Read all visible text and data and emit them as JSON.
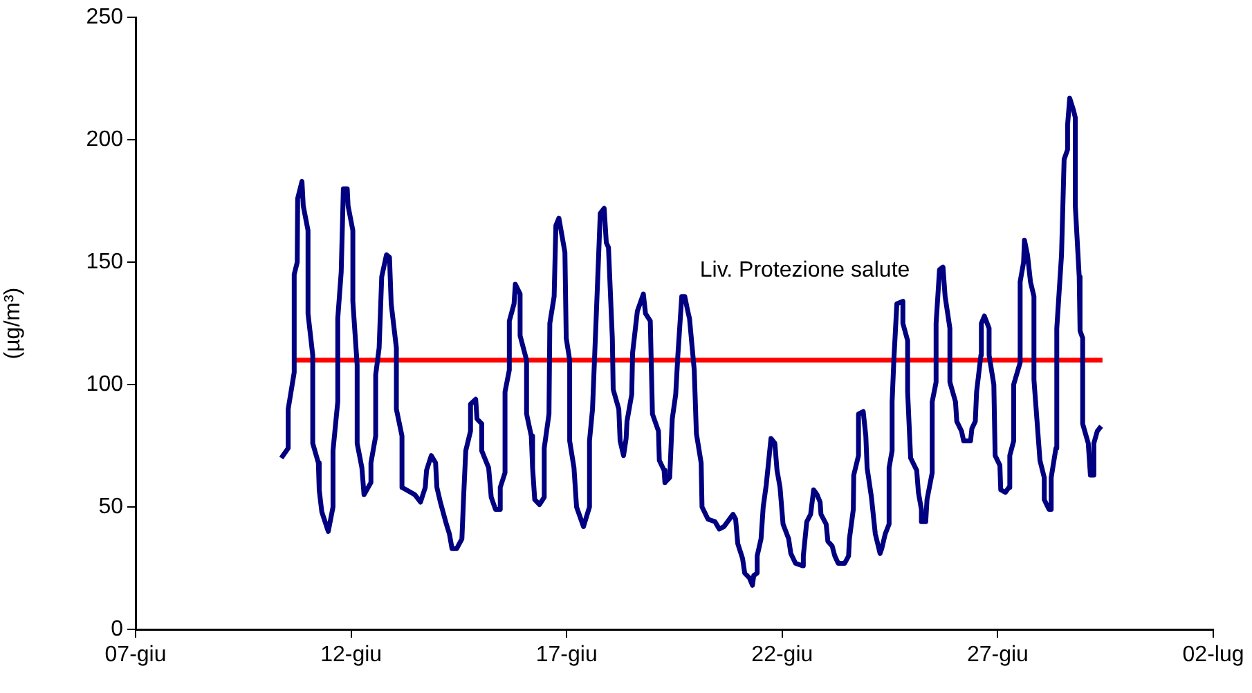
{
  "chart_data": {
    "type": "line",
    "ylabel": "(µg/m³)",
    "xlim": [
      "--06-07",
      "--07-02"
    ],
    "ylim": [
      0,
      250
    ],
    "xticks": [
      {
        "value": "--06-07",
        "label": "07-giu"
      },
      {
        "value": "--06-12",
        "label": "12-giu"
      },
      {
        "value": "--06-17",
        "label": "17-giu"
      },
      {
        "value": "--06-22",
        "label": "22-giu"
      },
      {
        "value": "--06-27",
        "label": "27-giu"
      },
      {
        "value": "--07-02",
        "label": "02-lug"
      }
    ],
    "yticks": [
      0,
      50,
      100,
      150,
      200,
      250
    ],
    "grid": false,
    "legend": false,
    "marker": "none",
    "line_style": "solid",
    "annotations": [
      "Liv. Protezione salute"
    ],
    "series": [
      {
        "color": "#000080",
        "x": [
          "--06-10T09:07",
          "--06-10T12:58",
          "--06-10T12:58",
          "--06-10T16:19",
          "--06-10T16:19",
          "--06-10T18:00",
          "--06-10T18:14",
          "--06-10T20:38",
          "--06-10T21:22",
          "--06-11T00:00",
          "--06-11T00:00",
          "--06-11T02:38",
          "--06-11T02:38",
          "--06-11T05:46",
          "--06-11T06:14",
          "--06-11T07:41",
          "--06-11T11:17",
          "--06-11T13:55",
          "--06-11T13:55",
          "--06-11T16:34",
          "--06-11T16:34",
          "--06-11T18:29",
          "--06-11T19:41",
          "--06-11T21:50",
          "--06-11T22:19",
          "--06-12T00:58",
          "--06-12T00:58",
          "--06-12T03:22",
          "--06-12T03:22",
          "--06-12T06:00",
          "--06-12T07:12",
          "--06-12T11:02",
          "--06-12T11:02",
          "--06-12T13:41",
          "--06-12T13:41",
          "--06-12T15:36",
          "--06-12T17:02",
          "--06-12T19:41",
          "--06-12T21:22",
          "--06-12T22:19",
          "--06-13T01:12",
          "--06-13T01:12",
          "--06-13T04:19",
          "--06-13T04:19",
          "--06-13T09:07",
          "--06-13T11:31",
          "--06-13T14:38",
          "--06-13T17:17",
          "--06-13T18:00",
          "--06-13T20:38",
          "--06-13T23:02",
          "--06-13T23:46",
          "--06-14T01:41",
          "--06-14T05:02",
          "--06-14T06:43",
          "--06-14T08:10",
          "--06-14T10:48",
          "--06-14T13:41",
          "--06-14T14:38",
          "--06-14T15:50",
          "--06-14T18:29",
          "--06-14T18:29",
          "--06-14T21:22",
          "--06-14T22:05",
          "--06-15T00:43",
          "--06-15T00:43",
          "--06-15T04:34",
          "--06-15T06:00",
          "--06-15T08:24",
          "--06-15T11:02",
          "--06-15T11:02",
          "--06-15T13:41",
          "--06-15T13:41",
          "--06-15T16:05",
          "--06-15T16:05",
          "--06-15T18:43",
          "--06-15T19:26",
          "--06-15T22:05",
          "--06-15T22:05",
          "--06-16T01:41",
          "--06-16T01:41",
          "--06-16T04:19",
          "--06-16T05:02",
          "--06-16T06:14",
          "--06-16T08:53",
          "--06-16T11:31",
          "--06-16T11:31",
          "--06-16T14:10",
          "--06-16T14:38",
          "--06-16T17:02",
          "--06-16T18:00",
          "--06-16T19:41",
          "--06-16T23:02",
          "--06-16T23:46",
          "--06-17T01:41",
          "--06-17T01:41",
          "--06-17T04:05",
          "--06-17T05:31",
          "--06-17T09:22",
          "--06-17T12:43",
          "--06-17T12:43",
          "--06-17T14:24",
          "--06-17T16:19",
          "--06-17T18:43",
          "--06-17T20:53",
          "--06-17T22:05",
          "--06-17T23:17",
          "--06-18T01:26",
          "--06-18T01:55",
          "--06-18T05:02",
          "--06-18T05:46",
          "--06-18T07:41",
          "--06-18T09:07",
          "--06-18T09:36",
          "--06-18T12:14",
          "--06-18T12:43",
          "--06-18T15:22",
          "--06-18T18:43",
          "--06-18T19:55",
          "--06-18T22:34",
          "--06-18T23:46",
          "--06-19T03:07",
          "--06-19T03:36",
          "--06-19T06:14",
          "--06-19T06:43",
          "--06-19T09:22",
          "--06-19T10:48",
          "--06-19T12:43",
          "--06-19T13:55",
          "--06-19T16:05",
          "--06-19T17:46",
          "--06-19T19:26",
          "--06-19T20:24",
          "--06-19T23:02",
          "--06-20T00:14",
          "--06-20T02:53",
          "--06-20T03:22",
          "--06-20T06:43",
          "--06-20T10:34",
          "--06-20T12:58",
          "--06-20T15:36",
          "--06-20T20:38",
          "--06-20T22:05",
          "--06-20T23:17",
          "--06-21T01:55",
          "--06-21T03:07",
          "--06-21T05:46",
          "--06-21T07:26",
          "--06-21T08:10",
          "--06-21T10:05",
          "--06-21T10:05",
          "--06-21T12:14",
          "--06-21T13:26",
          "--06-21T15:07",
          "--06-21T17:46",
          "--06-21T19:55",
          "--06-21T21:07",
          "--06-21T22:48",
          "--06-22T00:29",
          "--06-22T03:36",
          "--06-22T04:48",
          "--06-22T07:26",
          "--06-22T11:17",
          "--06-22T11:46",
          "--06-22T13:41",
          "--06-22T15:50",
          "--06-22T17:31",
          "--06-22T19:26",
          "--06-22T21:07",
          "--06-22T21:36",
          "--06-23T00:29",
          "--06-23T01:26",
          "--06-23T03:50",
          "--06-23T05:17",
          "--06-23T07:12",
          "--06-23T10:48",
          "--06-23T12:58",
          "--06-23T13:26",
          "--06-23T15:36",
          "--06-23T15:50",
          "--06-23T18:29",
          "--06-23T18:29",
          "--06-23T21:07",
          "--06-23T22:34",
          "--06-23T23:17",
          "--06-24T01:41",
          "--06-24T03:50",
          "--06-24T06:29",
          "--06-24T07:26",
          "--06-24T09:22",
          "--06-24T11:31",
          "--06-24T11:31",
          "--06-24T13:12",
          "--06-24T13:12",
          "--06-24T14:10",
          "--06-24T15:50",
          "--06-24T19:12",
          "--06-24T19:12",
          "--06-24T21:50",
          "--06-24T21:50",
          "--06-24T23:31",
          "--06-25T02:53",
          "--06-25T03:50",
          "--06-25T05:31",
          "--06-25T05:31",
          "--06-25T07:55",
          "--06-25T08:38",
          "--06-25T11:31",
          "--06-25T11:31",
          "--06-25T13:41",
          "--06-25T13:41",
          "--06-25T15:36",
          "--06-25T17:31",
          "--06-25T18:43",
          "--06-25T21:22",
          "--06-25T21:22",
          "--06-26T00:29",
          "--06-26T01:12",
          "--06-26T03:50",
          "--06-26T05:02",
          "--06-26T08:53",
          "--06-26T09:36",
          "--06-26T11:31",
          "--06-26T12:14",
          "--06-26T14:38",
          "--06-26T14:53",
          "--06-26T16:34",
          "--06-26T19:12",
          "--06-26T19:12",
          "--06-26T21:50",
          "--06-26T22:34",
          "--06-27T01:12",
          "--06-27T01:41",
          "--06-27T04:19",
          "--06-27T06:14",
          "--06-27T06:43",
          "--06-27T08:53",
          "--06-27T08:53",
          "--06-27T12:29",
          "--06-27T12:29",
          "--06-27T14:24",
          "--06-27T14:53",
          "--06-27T16:34",
          "--06-27T18:14",
          "--06-27T20:10",
          "--06-27T20:10",
          "--06-27T23:31",
          "--06-28T01:55",
          "--06-28T01:55",
          "--06-28T04:34",
          "--06-28T05:46",
          "--06-28T05:46",
          "--06-28T08:24",
          "--06-28T08:53",
          "--06-28T11:31",
          "--06-28T12:58",
          "--06-28T14:53",
          "--06-28T14:53",
          "--06-28T16:05",
          "--06-28T18:14",
          "--06-28T19:12",
          "--06-28T19:12",
          "--06-28T21:22",
          "--06-28T21:50",
          "--06-28T23:17",
          "--06-28T23:17",
          "--06-29T02:24",
          "--06-29T03:36",
          "--06-29T05:02",
          "--06-29T05:31",
          "--06-29T07:26",
          "--06-29T09:36"
        ],
        "values": [
          70,
          74,
          90,
          105,
          145,
          150,
          176,
          183,
          173,
          163,
          129,
          112,
          76,
          68,
          57,
          48,
          40,
          50,
          73,
          93,
          127,
          146,
          180,
          180,
          173,
          163,
          134,
          108,
          76,
          66,
          55,
          60,
          68,
          79,
          104,
          115,
          144,
          153,
          152,
          133,
          115,
          90,
          79,
          58,
          56,
          55,
          52,
          58,
          65,
          71,
          68,
          58,
          52,
          43,
          39,
          33,
          33,
          37,
          54,
          73,
          81,
          92,
          94,
          86,
          84,
          73,
          66,
          54,
          49,
          49,
          58,
          64,
          97,
          106,
          126,
          133,
          141,
          137,
          120,
          110,
          88,
          79,
          66,
          53,
          51,
          54,
          74,
          88,
          125,
          136,
          165,
          168,
          154,
          119,
          110,
          77,
          66,
          50,
          42,
          50,
          77,
          90,
          125,
          170,
          172,
          158,
          156,
          119,
          98,
          90,
          77,
          71,
          78,
          85,
          96,
          113,
          130,
          137,
          129,
          126,
          88,
          81,
          69,
          65,
          60,
          62,
          86,
          96,
          112,
          136,
          136,
          130,
          127,
          106,
          80,
          68,
          50,
          45,
          44,
          41,
          42,
          47,
          45,
          35,
          29,
          23,
          21,
          18,
          22,
          23,
          30,
          37,
          50,
          59,
          78,
          76,
          65,
          58,
          43,
          37,
          31,
          27,
          26,
          30,
          44,
          47,
          57,
          55,
          52,
          47,
          43,
          36,
          34,
          30,
          27,
          27,
          30,
          37,
          49,
          63,
          71,
          88,
          89,
          79,
          66,
          54,
          39,
          31,
          33,
          39,
          43,
          66,
          73,
          93,
          110,
          133,
          134,
          125,
          118,
          97,
          70,
          65,
          56,
          49,
          44,
          44,
          53,
          64,
          93,
          101,
          125,
          147,
          148,
          136,
          123,
          101,
          93,
          85,
          81,
          77,
          77,
          82,
          85,
          97,
          112,
          125,
          128,
          123,
          112,
          100,
          71,
          67,
          57,
          56,
          58,
          71,
          77,
          100,
          109,
          142,
          150,
          159,
          153,
          142,
          136,
          102,
          69,
          62,
          53,
          49,
          49,
          62,
          74,
          123,
          153,
          192,
          196,
          206,
          217,
          212,
          209,
          173,
          144,
          122,
          119,
          84,
          76,
          63,
          63,
          76,
          81,
          83
        ]
      },
      {
        "color": "#ff0000",
        "x": [
          "--06-10T16:34",
          "--06-29T10:19"
        ],
        "values": [
          110,
          110
        ]
      }
    ]
  }
}
